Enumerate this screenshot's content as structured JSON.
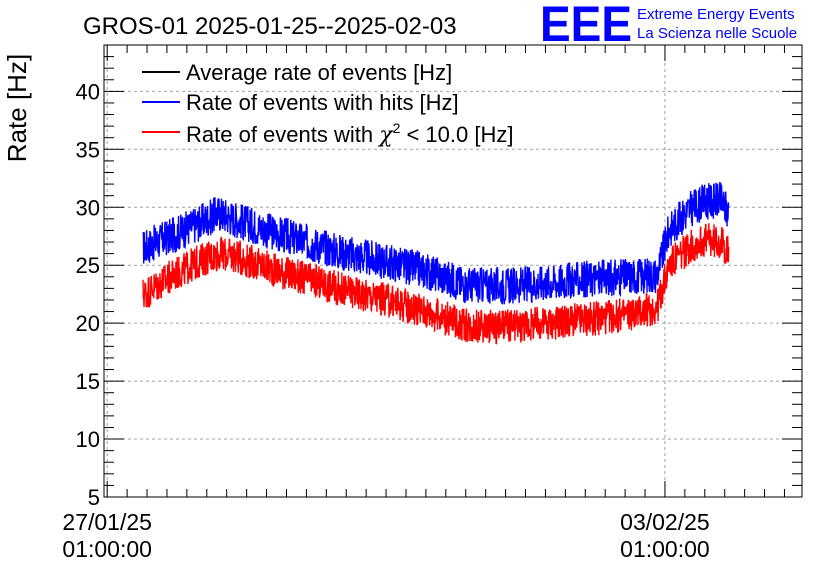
{
  "header": {
    "title": "GROS-01 2025-01-25--2025-02-03",
    "logo_text": "EEE",
    "org_line1": "Extreme Energy Events",
    "org_line2": "La Scienza nelle Scuole"
  },
  "colors": {
    "blue": "#0000ff",
    "red": "#ff0000",
    "black": "#000000",
    "grid": "#a0a0a0"
  },
  "chart_data": {
    "type": "line",
    "title": "GROS-01 2025-01-25--2025-02-03",
    "xlabel": "",
    "ylabel": "Rate [Hz]",
    "ylim": [
      5,
      44
    ],
    "xlim_days": [
      -0.04,
      8.72
    ],
    "yticks": [
      5,
      10,
      15,
      20,
      25,
      30,
      35,
      40
    ],
    "xticks": [
      {
        "day": 0,
        "date": "27/01/25",
        "time": "01:00:00"
      },
      {
        "day": 7,
        "date": "03/02/25",
        "time": "01:00:00"
      }
    ],
    "grid": true,
    "legend_position": "top-left",
    "x_units": "days since 27/01/25 01:00:00",
    "series": [
      {
        "name": "Average rate of events [Hz]",
        "color": "#000000",
        "days": [],
        "values": []
      },
      {
        "name": "Rate of events with hits [Hz]",
        "color": "#0000ff",
        "noise_amplitude": 1.6,
        "days": [
          0.45,
          0.8,
          1.2,
          1.4,
          1.6,
          2.0,
          2.5,
          3.0,
          3.5,
          4.0,
          4.5,
          5.0,
          5.5,
          6.0,
          6.5,
          6.9,
          7.05,
          7.3,
          7.5,
          7.7,
          7.8
        ],
        "values": [
          26.5,
          27.5,
          28.8,
          29.5,
          29.0,
          28.0,
          27.0,
          26.0,
          25.3,
          24.5,
          23.3,
          23.2,
          23.5,
          23.8,
          24.0,
          24.2,
          28.0,
          29.8,
          30.5,
          30.6,
          29.5
        ]
      },
      {
        "name": "Rate of events with χ² < 10.0 [Hz]",
        "legend_prefix": "Rate of events with ",
        "legend_chi": "χ",
        "legend_sup": "2",
        "legend_suffix": " < 10.0 [Hz]",
        "color": "#ff0000",
        "noise_amplitude": 1.5,
        "days": [
          0.45,
          0.8,
          1.2,
          1.4,
          1.6,
          2.0,
          2.5,
          3.0,
          3.5,
          4.0,
          4.5,
          5.0,
          5.5,
          6.0,
          6.5,
          6.9,
          7.05,
          7.3,
          7.5,
          7.7,
          7.8
        ],
        "values": [
          22.5,
          24.0,
          25.5,
          26.0,
          25.8,
          24.8,
          23.8,
          22.8,
          22.0,
          21.0,
          19.8,
          19.7,
          20.0,
          20.3,
          20.7,
          21.3,
          25.0,
          26.5,
          27.2,
          27.0,
          26.0
        ]
      }
    ]
  }
}
